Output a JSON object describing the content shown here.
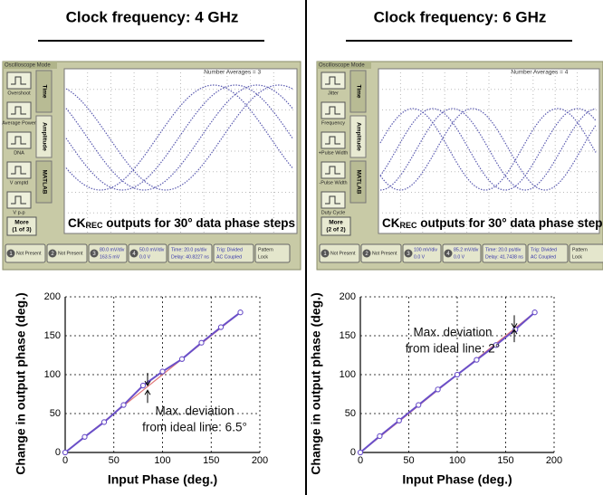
{
  "columns": [
    {
      "title": "Clock frequency: 4 GHz",
      "scope": {
        "mode": "Oscilloscope Mode",
        "averages": "Number Averages =  3",
        "tabs": [
          "Time",
          "Amplitude",
          "MATLAB"
        ],
        "buttons": [
          "Overshoot",
          "Average Power",
          "DNA",
          "V amptd",
          "V p-p"
        ],
        "more": [
          "More",
          "(1 of 3)"
        ],
        "caption": [
          "CK",
          "REC",
          " outputs for 30° data phase steps"
        ],
        "channels": [
          "1",
          "2",
          "3",
          "4"
        ],
        "status": [
          [
            "Not Present"
          ],
          [
            "Not Present"
          ],
          [
            "80.0 mV/div",
            "163.5 mV"
          ],
          [
            "50.0 mV/div",
            "0.0 V"
          ],
          [
            "Time: 20.0 ps/div",
            "Delay: 40.8227 ns"
          ],
          [
            "Trig: Divided",
            "AC Coupled"
          ],
          [
            "Pattern",
            "Lock"
          ]
        ]
      }
    },
    {
      "title": "Clock frequency: 6 GHz",
      "scope": {
        "mode": "Oscilloscope Mode",
        "averages": "Number Averages =  4",
        "tabs": [
          "Time",
          "Amplitude",
          "MATLAB"
        ],
        "buttons": [
          "Jitter",
          "Frequency",
          "+Pulse Width",
          "-Pulse Width",
          "Duty Cycle"
        ],
        "more": [
          "More",
          "(2 of 2)"
        ],
        "caption": [
          "CK",
          "REC",
          " outputs for 30° data phase steps"
        ],
        "channels": [
          "1",
          "2",
          "3",
          "4"
        ],
        "status": [
          [
            "Not Present"
          ],
          [
            "Not Present"
          ],
          [
            "100 mV/div",
            "0.0 V"
          ],
          [
            "85.2 mV/div",
            "0.0 V"
          ],
          [
            "Time: 20.0 ps/div",
            "Delay: 41.7438 ns"
          ],
          [
            "Trig: Divided",
            "AC Coupled"
          ],
          [
            "Pattern",
            "Lock"
          ]
        ]
      }
    }
  ],
  "chart_data": [
    {
      "type": "line",
      "xlabel": "Input Phase (deg.)",
      "ylabel": "Change in output phase (deg.)",
      "x": [
        0,
        20,
        40,
        60,
        80,
        100,
        120,
        140,
        160,
        180
      ],
      "series": [
        {
          "color": "#e07878",
          "markers": false,
          "values": [
            0,
            20,
            40,
            60,
            80,
            100,
            120,
            140,
            160,
            180
          ]
        },
        {
          "color": "#6a4fc8",
          "markers": true,
          "values": [
            0,
            20,
            39,
            61,
            86,
            104,
            120,
            141,
            161,
            180
          ]
        }
      ],
      "xlim": [
        0,
        200
      ],
      "ylim": [
        0,
        200
      ],
      "xticks": [
        0,
        50,
        100,
        150,
        200
      ],
      "yticks": [
        0,
        50,
        100,
        150,
        200
      ],
      "grid": true,
      "annotation": [
        "Max. deviation",
        "from ideal line: 6.5°"
      ]
    },
    {
      "type": "line",
      "xlabel": "Input Phase (deg.)",
      "ylabel": "Change in output phase (deg.)",
      "x": [
        0,
        20,
        40,
        60,
        80,
        100,
        120,
        140,
        160,
        180
      ],
      "series": [
        {
          "color": "#e07878",
          "markers": false,
          "values": [
            0,
            20,
            40,
            60,
            80,
            100,
            120,
            140,
            160,
            180
          ]
        },
        {
          "color": "#6a4fc8",
          "markers": true,
          "values": [
            0,
            21,
            41,
            61,
            81,
            100,
            119,
            138,
            158,
            180
          ]
        }
      ],
      "xlim": [
        0,
        200
      ],
      "ylim": [
        0,
        200
      ],
      "xticks": [
        0,
        50,
        100,
        150,
        200
      ],
      "yticks": [
        0,
        50,
        100,
        150,
        200
      ],
      "grid": true,
      "annotation": [
        "Max. deviation",
        "from ideal line: 2°"
      ]
    }
  ]
}
